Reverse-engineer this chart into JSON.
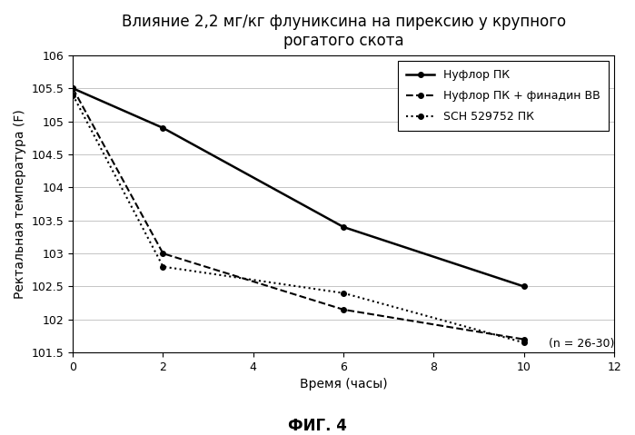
{
  "title": "Влияние 2,2 мг/кг флуниксина на пирексию у крупного\nрогатого скота",
  "xlabel": "Время (часы)",
  "ylabel": "Ректальная температура (F)",
  "caption": "ФИГ. 4",
  "note": "(n = 26-30)",
  "xlim": [
    0,
    12
  ],
  "ylim": [
    101.5,
    106
  ],
  "xticks": [
    0,
    2,
    4,
    6,
    8,
    10,
    12
  ],
  "yticks": [
    101.5,
    102,
    102.5,
    103,
    103.5,
    104,
    104.5,
    105,
    105.5,
    106
  ],
  "series": [
    {
      "label": "Нуфлор ПК",
      "x": [
        0,
        2,
        6,
        10
      ],
      "y": [
        105.5,
        104.9,
        103.4,
        102.5
      ],
      "color": "#000000",
      "linestyle": "-",
      "marker": "o",
      "markersize": 4,
      "linewidth": 1.8
    },
    {
      "label": "Нуфлор ПК + финадин ВВ",
      "x": [
        0,
        2,
        6,
        10
      ],
      "y": [
        105.5,
        103.0,
        102.15,
        101.7
      ],
      "color": "#000000",
      "linestyle": "--",
      "marker": "o",
      "markersize": 4,
      "linewidth": 1.5
    },
    {
      "label": "SCН 529752 ПК",
      "x": [
        0,
        2,
        6,
        10
      ],
      "y": [
        105.4,
        102.8,
        102.4,
        101.65
      ],
      "color": "#000000",
      "linestyle": "dotted",
      "marker": "o",
      "markersize": 4,
      "linewidth": 1.5
    }
  ],
  "background_color": "#ffffff",
  "grid_color": "#bbbbbb",
  "title_fontsize": 12,
  "label_fontsize": 10,
  "tick_fontsize": 9,
  "legend_fontsize": 9
}
